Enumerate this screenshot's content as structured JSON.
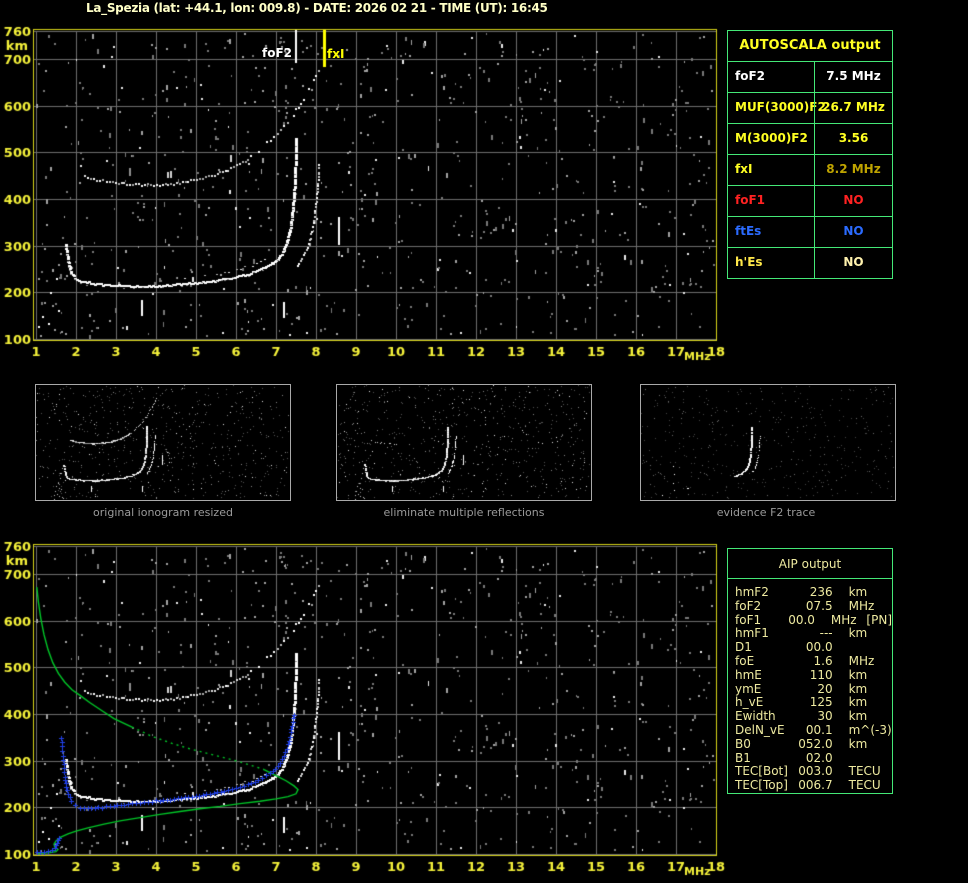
{
  "header": {
    "title": "La_Spezia (lat: +44.1, lon: 009.8) - DATE: 2026 02 21 - TIME (UT): 16:45"
  },
  "colors": {
    "background": "#000000",
    "title_text": "#ffffc6",
    "axis_text": "#f5f23a",
    "plot_border": "#d9d619",
    "grid": "#6e6e6e",
    "table_border": "#44e877",
    "autoscala_header": "#ffff22",
    "aip_text": "#eeeaa0",
    "trace_white": "#ffffff",
    "noise_gray": "#8a8a8a",
    "green_profile": "#00c828",
    "blue_fit": "#2040e8",
    "marker_foF2": "#ffffff",
    "marker_fxI": "#ffff00",
    "thumb_caption": "#9a9a9a"
  },
  "autoscala": {
    "title": "AUTOSCALA output",
    "rows": [
      {
        "label": "foF2",
        "value": "7.5 MHz",
        "label_color": "#ffffff",
        "value_color": "#ffffff"
      },
      {
        "label": "MUF(3000)F2",
        "value": "26.7 MHz",
        "label_color": "#ffff22",
        "value_color": "#ffff22"
      },
      {
        "label": "M(3000)F2",
        "value": "3.56",
        "label_color": "#ffff22",
        "value_color": "#ffff22"
      },
      {
        "label": "fxI",
        "value": "8.2 MHz",
        "label_color": "#ffff22",
        "value_color": "#bfa400"
      },
      {
        "label": "foF1",
        "value": "NO",
        "label_color": "#ff2222",
        "value_color": "#ff2222"
      },
      {
        "label": "ftEs",
        "value": "NO",
        "label_color": "#2b6bff",
        "value_color": "#2b6bff"
      },
      {
        "label": "h'Es",
        "value": "NO",
        "label_color": "#ffe84a",
        "value_color": "#fff2ae"
      }
    ]
  },
  "thumbnails": [
    {
      "caption": "original ionogram resized"
    },
    {
      "caption": "eliminate multiple reflections"
    },
    {
      "caption": "evidence F2 trace"
    }
  ],
  "aip": {
    "title": "AIP output",
    "rows": [
      {
        "label": "hmF2",
        "value": "236",
        "unit": "km",
        "note": ""
      },
      {
        "label": "foF2",
        "value": "07.5",
        "unit": "MHz",
        "note": ""
      },
      {
        "label": "foF1",
        "value": "00.0",
        "unit": "MHz",
        "note": "[PN]"
      },
      {
        "label": "hmF1",
        "value": "---",
        "unit": "km",
        "note": ""
      },
      {
        "label": "D1",
        "value": "00.0",
        "unit": "",
        "note": ""
      },
      {
        "label": "foE",
        "value": "1.6",
        "unit": "MHz",
        "note": ""
      },
      {
        "label": "hmE",
        "value": "110",
        "unit": "km",
        "note": ""
      },
      {
        "label": "ymE",
        "value": "20",
        "unit": "km",
        "note": ""
      },
      {
        "label": "h_vE",
        "value": "125",
        "unit": "km",
        "note": ""
      },
      {
        "label": "Ewidth",
        "value": "30",
        "unit": "km",
        "note": ""
      },
      {
        "label": "DelN_vE",
        "value": "00.1",
        "unit": "m^(-3)",
        "note": ""
      },
      {
        "label": "B0",
        "value": "052.0",
        "unit": "km",
        "note": ""
      },
      {
        "label": "B1",
        "value": "02.0",
        "unit": "",
        "note": ""
      },
      {
        "label": "TEC[Bot]",
        "value": "003.0",
        "unit": "TECU",
        "note": ""
      },
      {
        "label": "TEC[Top]",
        "value": "006.7",
        "unit": "TECU",
        "note": ""
      }
    ]
  },
  "chart_data": {
    "type": "scatter",
    "description": "Vertical-incidence ionogram (virtual height km vs frequency MHz) shown twice: raw autoscaled ionogram (top) and same ionogram with AIP model profile (green) and fitted trace (blue) (bottom), plus three processing-stage thumbnails",
    "x_axis": {
      "label": "MHz",
      "min": 1,
      "max": 18,
      "ticks": [
        1,
        2,
        3,
        4,
        5,
        6,
        7,
        8,
        9,
        10,
        11,
        12,
        13,
        14,
        15,
        16,
        17,
        18
      ]
    },
    "y_axis": {
      "label": "km",
      "min": 100,
      "max": 760,
      "ticks": [
        760,
        700,
        600,
        500,
        400,
        300,
        200,
        100
      ]
    },
    "markers": {
      "foF2_label": "foF2",
      "foF2_MHz": 7.5,
      "fxI_label": "fxI",
      "fxI_MHz": 8.2
    },
    "traces": {
      "f2_o_mode": [
        [
          1.72,
          305
        ],
        [
          1.76,
          282
        ],
        [
          1.8,
          260
        ],
        [
          1.86,
          242
        ],
        [
          1.95,
          231
        ],
        [
          2.1,
          225
        ],
        [
          2.4,
          220
        ],
        [
          2.8,
          217
        ],
        [
          3.3,
          215
        ],
        [
          3.9,
          215
        ],
        [
          4.5,
          218
        ],
        [
          5.0,
          222
        ],
        [
          5.5,
          227
        ],
        [
          5.9,
          233
        ],
        [
          6.3,
          241
        ],
        [
          6.65,
          252
        ],
        [
          6.95,
          267
        ],
        [
          7.12,
          284
        ],
        [
          7.25,
          308
        ],
        [
          7.34,
          340
        ],
        [
          7.4,
          380
        ],
        [
          7.44,
          425
        ],
        [
          7.46,
          465
        ],
        [
          7.475,
          505
        ],
        [
          7.48,
          530
        ]
      ],
      "f2_o_upper": [
        [
          4.7,
          231
        ],
        [
          5.2,
          236
        ],
        [
          5.7,
          243
        ],
        [
          6.1,
          251
        ],
        [
          6.5,
          262
        ],
        [
          6.8,
          275
        ],
        [
          7.0,
          288
        ]
      ],
      "f2_x_mode": [
        [
          7.52,
          258
        ],
        [
          7.63,
          274
        ],
        [
          7.74,
          293
        ],
        [
          7.84,
          318
        ],
        [
          7.92,
          350
        ],
        [
          7.98,
          390
        ],
        [
          8.03,
          430
        ],
        [
          8.05,
          460
        ],
        [
          8.06,
          475
        ]
      ],
      "second_hop": [
        [
          2.2,
          452
        ],
        [
          2.5,
          443
        ],
        [
          2.9,
          437
        ],
        [
          3.4,
          433
        ],
        [
          4.0,
          432
        ],
        [
          4.5,
          435
        ],
        [
          5.0,
          443
        ],
        [
          5.45,
          454
        ],
        [
          5.85,
          467
        ],
        [
          6.15,
          480
        ],
        [
          6.35,
          492
        ]
      ],
      "second_hop_tail": [
        [
          6.55,
          505
        ],
        [
          6.85,
          528
        ],
        [
          7.1,
          550
        ],
        [
          7.35,
          575
        ],
        [
          7.6,
          608
        ],
        [
          7.85,
          645
        ],
        [
          8.05,
          675
        ],
        [
          8.15,
          692
        ]
      ],
      "vertical_dashes": [
        [
          3.62,
          148,
          183
        ],
        [
          7.18,
          146,
          180
        ],
        [
          8.55,
          303,
          362
        ]
      ],
      "e_region_scatter": [
        [
          1.1,
          108
        ],
        [
          1.2,
          180
        ],
        [
          1.15,
          150
        ],
        [
          1.3,
          135
        ],
        [
          1.35,
          200
        ],
        [
          1.45,
          122
        ],
        [
          1.5,
          230
        ],
        [
          1.55,
          162
        ],
        [
          1.55,
          260
        ],
        [
          1.6,
          285
        ],
        [
          1.62,
          118
        ],
        [
          1.72,
          112
        ],
        [
          1.05,
          128
        ],
        [
          1.4,
          172
        ]
      ]
    },
    "model": {
      "green_topside_solid": [
        [
          1.02,
          672
        ],
        [
          1.06,
          640
        ],
        [
          1.12,
          605
        ],
        [
          1.2,
          570
        ],
        [
          1.3,
          538
        ],
        [
          1.42,
          510
        ],
        [
          1.56,
          487
        ],
        [
          1.72,
          468
        ],
        [
          1.9,
          452
        ],
        [
          2.1,
          440
        ],
        [
          2.35,
          424
        ],
        [
          2.65,
          407
        ],
        [
          2.95,
          390
        ],
        [
          3.4,
          372
        ]
      ],
      "green_topside_dotted": [
        [
          3.4,
          372
        ],
        [
          3.9,
          352
        ],
        [
          4.4,
          337
        ],
        [
          4.9,
          324
        ],
        [
          5.4,
          313
        ],
        [
          5.9,
          302
        ],
        [
          6.3,
          292
        ],
        [
          6.7,
          281
        ]
      ],
      "green_bottomside_solid": [
        [
          6.7,
          281
        ],
        [
          7.0,
          268
        ],
        [
          7.25,
          257
        ],
        [
          7.45,
          246
        ],
        [
          7.55,
          238
        ],
        [
          7.5,
          229
        ],
        [
          7.3,
          223
        ],
        [
          7.0,
          218
        ],
        [
          6.6,
          213
        ],
        [
          6.1,
          208
        ],
        [
          5.6,
          202
        ],
        [
          5.1,
          197
        ],
        [
          4.6,
          191
        ],
        [
          4.1,
          185
        ],
        [
          3.6,
          178
        ],
        [
          3.1,
          171
        ],
        [
          2.7,
          164
        ],
        [
          2.3,
          156
        ],
        [
          2.0,
          149
        ],
        [
          1.8,
          143
        ],
        [
          1.62,
          136
        ],
        [
          1.5,
          128
        ],
        [
          1.45,
          121
        ],
        [
          1.47,
          115
        ],
        [
          1.55,
          110
        ],
        [
          1.5,
          105
        ],
        [
          1.35,
          103
        ],
        [
          1.2,
          102
        ],
        [
          1.05,
          101
        ]
      ],
      "blue_fit": [
        [
          1.63,
          348
        ],
        [
          1.66,
          320
        ],
        [
          1.69,
          292
        ],
        [
          1.72,
          266
        ],
        [
          1.76,
          244
        ],
        [
          1.81,
          228
        ],
        [
          1.88,
          214
        ],
        [
          1.97,
          205
        ],
        [
          2.1,
          200
        ],
        [
          2.3,
          198
        ],
        [
          2.55,
          199
        ],
        [
          2.85,
          202
        ],
        [
          3.2,
          206
        ],
        [
          3.6,
          210
        ],
        [
          4.0,
          214
        ],
        [
          4.45,
          218
        ],
        [
          4.9,
          223
        ],
        [
          5.35,
          229
        ],
        [
          5.8,
          237
        ],
        [
          6.2,
          247
        ],
        [
          6.55,
          259
        ],
        [
          6.85,
          273
        ],
        [
          7.05,
          288
        ],
        [
          7.2,
          310
        ],
        [
          7.3,
          335
        ],
        [
          7.37,
          360
        ],
        [
          7.42,
          382
        ],
        [
          7.45,
          398
        ]
      ],
      "blue_e_trace": [
        [
          1.02,
          104
        ],
        [
          1.1,
          105
        ],
        [
          1.2,
          105
        ],
        [
          1.3,
          106
        ],
        [
          1.4,
          108
        ],
        [
          1.48,
          113
        ],
        [
          1.53,
          123
        ],
        [
          1.57,
          135
        ]
      ],
      "hmF2_km": 236,
      "foF2_MHz": 7.5,
      "foE_MHz": 1.6,
      "hmE_km": 110
    },
    "noise": {
      "seed": 20240221,
      "count": 760
    }
  }
}
